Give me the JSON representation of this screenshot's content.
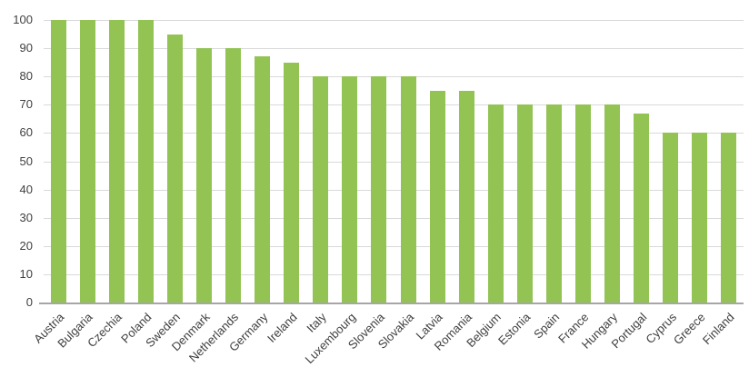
{
  "chart_data": {
    "type": "bar",
    "categories": [
      "Austria",
      "Bulgaria",
      "Czechia",
      "Poland",
      "Sweden",
      "Denmark",
      "Netherlands",
      "Germany",
      "Ireland",
      "Italy",
      "Luxembourg",
      "Slovenia",
      "Slovakia",
      "Latvia",
      "Romania",
      "Belgium",
      "Estonia",
      "Spain",
      "France",
      "Hungary",
      "Portugal",
      "Cyprus",
      "Greece",
      "Finland"
    ],
    "values": [
      100,
      100,
      100,
      100,
      95,
      90,
      90,
      87,
      85,
      80,
      80,
      80,
      80,
      75,
      75,
      70,
      70,
      70,
      70,
      70,
      67,
      60,
      60,
      60
    ],
    "title": "",
    "xlabel": "",
    "ylabel": "",
    "ylim": [
      0,
      100
    ],
    "yticks": [
      0,
      10,
      20,
      30,
      40,
      50,
      60,
      70,
      80,
      90,
      100
    ],
    "grid": true,
    "legend": false
  },
  "colors": {
    "bar": "#92c353",
    "gridline": "#d9d9d9",
    "axis_line": "#a6a6a6",
    "tick_text": "#3f3f3f",
    "background": "#ffffff"
  }
}
